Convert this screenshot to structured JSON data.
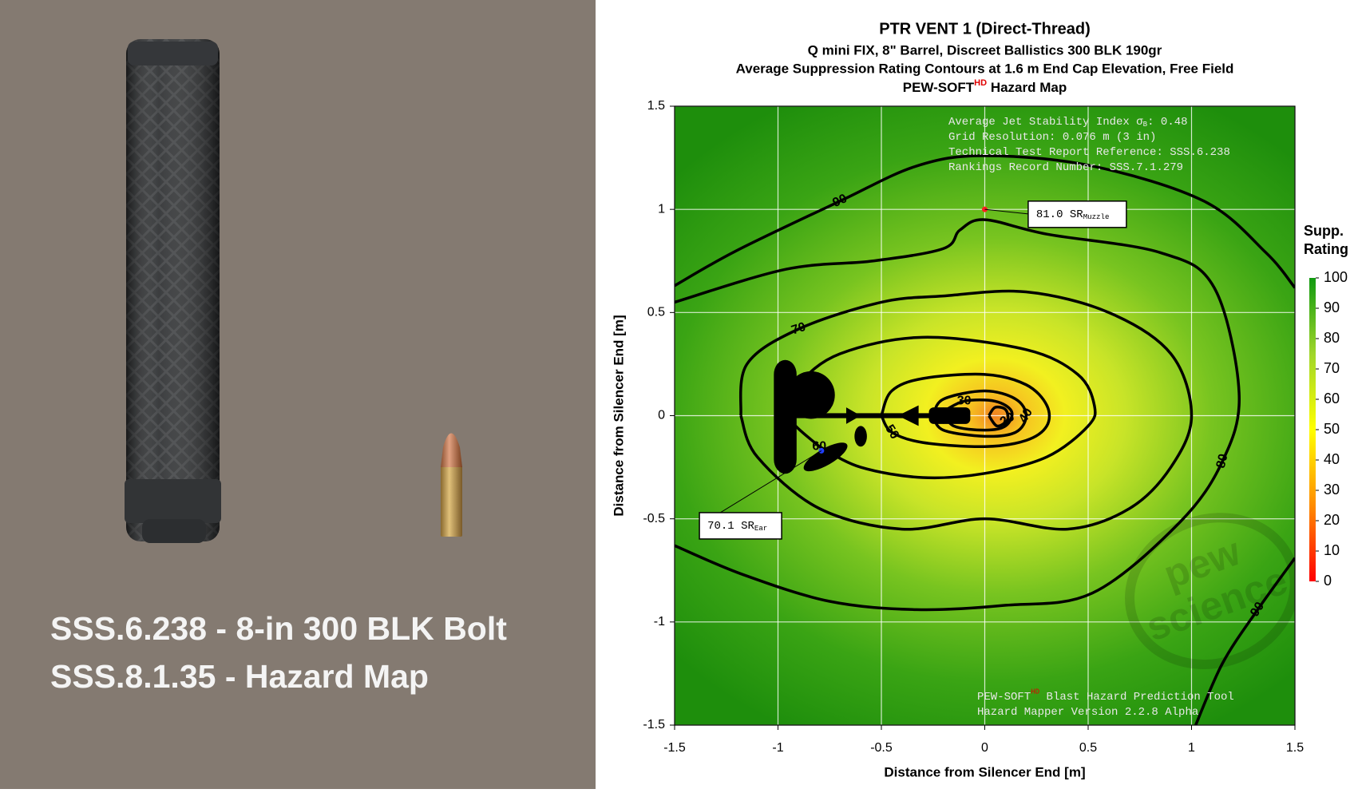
{
  "photo_caption": [
    "SSS.6.238 - 8-in 300 BLK Bolt",
    "SSS.8.1.35 - Hazard Map"
  ],
  "chart_data": {
    "type": "contour",
    "title": "PTR VENT 1 (Direct-Thread)",
    "subtitle": [
      "Q mini FIX, 8\" Barrel, Discreet Ballistics 300 BLK 190gr",
      "Average Suppression Rating Contours at 1.6 m End Cap Elevation, Free Field"
    ],
    "title_line4": {
      "text": "PEW-SOFT",
      "sup": "HD",
      "rest": " Hazard Map"
    },
    "x_label": "Distance from Silencer End [m]",
    "y_label": "Distance from Silencer End [m]",
    "xlim": [
      -1.5,
      1.5
    ],
    "ylim": [
      -1.5,
      1.5
    ],
    "xticks": [
      -1.5,
      -1,
      -0.5,
      0,
      0.5,
      1,
      1.5
    ],
    "yticks": [
      -1.5,
      -1,
      -0.5,
      0,
      0.5,
      1,
      1.5
    ],
    "grid": true,
    "colorbar": {
      "label": [
        "Supp.",
        "Rating"
      ],
      "zlim": [
        0,
        100
      ],
      "ticks": [
        0,
        10,
        20,
        30,
        40,
        50,
        60,
        70,
        80,
        90,
        100
      ],
      "colors": [
        "#ff0000",
        "#ff8c00",
        "#ffff00",
        "#9fd62a",
        "#119a11"
      ]
    },
    "info": [
      {
        "text": "Average Jet Stability Index σ",
        "sub": "B",
        "rest": ": 0.48"
      },
      {
        "text": "Grid Resolution: 0.076 m (3 in)"
      },
      {
        "text": "Technical Test Report Reference: SSS.6.238"
      },
      {
        "text": "Rankings Record Number: SSS.7.1.279"
      }
    ],
    "footer": [
      {
        "text": "PEW-SOFT",
        "sup": "HD",
        "rest": " Blast Hazard Prediction Tool"
      },
      {
        "text": "Hazard Mapper Version 2.2.8 Alpha"
      }
    ],
    "watermark": [
      "pew",
      "science"
    ],
    "annotations": [
      {
        "text": "81.0 SR",
        "sub": "Muzzle",
        "x": 0,
        "y": 1.0
      },
      {
        "text": "70.1 SR",
        "sub": "Ear",
        "x": -0.79,
        "y": -0.17
      }
    ],
    "contours": [
      {
        "level": 90,
        "x": [
          -1.5,
          -1.2,
          -0.7,
          -0.33,
          0,
          0.52,
          1.06,
          1.36,
          1.5
        ],
        "y": [
          0.63,
          0.8,
          1.04,
          1.21,
          1.26,
          1.21,
          1.04,
          0.79,
          0.62
        ]
      },
      {
        "level": 90,
        "x": [
          1.5,
          1.32,
          1.15,
          1.02
        ],
        "y": [
          -0.69,
          -0.94,
          -1.2,
          -1.5
        ]
      },
      {
        "level": 80,
        "x": [
          -1.5,
          -1.17,
          -0.75,
          -0.33,
          0.09,
          0.52,
          0.94,
          1.15,
          1.23,
          1.11,
          0.85,
          0.3,
          0,
          -0.12,
          -0.2,
          -0.54,
          -0.96,
          -1.5
        ],
        "y": [
          -0.63,
          -0.77,
          -0.9,
          -0.94,
          -0.92,
          -0.86,
          -0.52,
          -0.22,
          0.11,
          0.62,
          0.79,
          0.88,
          0.95,
          0.9,
          0.81,
          0.75,
          0.71,
          0.55
        ]
      },
      {
        "level": 70,
        "x": [
          -1.18,
          -1.15,
          -0.9,
          -0.5,
          -0.2,
          0.2,
          0.6,
          0.9,
          1.0,
          0.9,
          0.7,
          0.4,
          0,
          -0.4,
          -0.8,
          -1.1,
          -1.18
        ],
        "y": [
          0,
          0.25,
          0.42,
          0.55,
          0.58,
          0.6,
          0.5,
          0.3,
          0,
          -0.25,
          -0.45,
          -0.55,
          -0.5,
          -0.55,
          -0.45,
          -0.2,
          0
        ]
      },
      {
        "level": 60,
        "x": [
          -0.8,
          -0.6,
          -0.3,
          0,
          0.3,
          0.5,
          0.53,
          0.45,
          0.2,
          -0.3,
          -0.7,
          -0.9,
          -0.95,
          -0.8
        ],
        "y": [
          -0.15,
          -0.25,
          -0.3,
          -0.28,
          -0.2,
          -0.05,
          0.05,
          0.2,
          0.32,
          0.38,
          0.3,
          0.15,
          0,
          -0.15
        ]
      },
      {
        "level": 50,
        "x": [
          -0.5,
          -0.45,
          -0.3,
          0,
          0.2,
          0.3,
          0.3,
          0.2,
          0,
          -0.3,
          -0.45,
          -0.5
        ],
        "y": [
          0,
          0.12,
          0.18,
          0.2,
          0.15,
          0.05,
          -0.05,
          -0.12,
          -0.15,
          -0.13,
          -0.08,
          0
        ]
      },
      {
        "level": 40,
        "x": [
          -0.25,
          -0.2,
          0,
          0.15,
          0.2,
          0.15,
          0,
          -0.2,
          -0.25
        ],
        "y": [
          0,
          0.08,
          0.12,
          0.08,
          0,
          -0.08,
          -0.1,
          -0.07,
          0
        ]
      },
      {
        "level": 30,
        "x": [
          -0.2,
          -0.1,
          0.05,
          0.13,
          0.1,
          0,
          -0.15,
          -0.2
        ],
        "y": [
          0.02,
          0.07,
          0.07,
          0.02,
          -0.05,
          -0.07,
          -0.05,
          0.02
        ]
      },
      {
        "level": 20,
        "x": [
          0.02,
          0.05,
          0.1,
          0.11,
          0.06,
          0.02
        ],
        "y": [
          0,
          0.04,
          0.03,
          -0.02,
          -0.05,
          0
        ]
      }
    ]
  }
}
